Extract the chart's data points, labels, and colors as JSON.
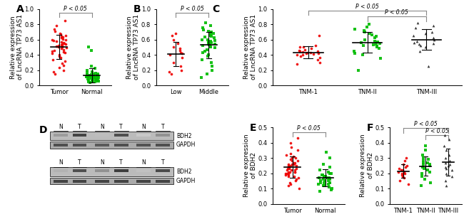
{
  "panelA": {
    "groups": [
      "Tumor",
      "Normal"
    ],
    "colors": [
      "#EE0000",
      "#00BB00"
    ],
    "markers": [
      "o",
      "s"
    ],
    "ylim": [
      0.0,
      1.0
    ],
    "yticks": [
      0.0,
      0.2,
      0.4,
      0.6,
      0.8,
      1.0
    ],
    "ylabel": "Relative expression\nof LncRNA TP73 AS1",
    "ptext": "P < 0.05",
    "data_tumor": [
      0.85,
      0.78,
      0.74,
      0.71,
      0.68,
      0.67,
      0.65,
      0.64,
      0.63,
      0.62,
      0.61,
      0.6,
      0.6,
      0.59,
      0.58,
      0.57,
      0.56,
      0.55,
      0.54,
      0.54,
      0.53,
      0.52,
      0.52,
      0.51,
      0.5,
      0.5,
      0.49,
      0.48,
      0.47,
      0.46,
      0.45,
      0.44,
      0.43,
      0.42,
      0.4,
      0.38,
      0.36,
      0.34,
      0.32,
      0.29,
      0.26,
      0.23,
      0.2,
      0.18,
      0.15
    ],
    "data_normal": [
      0.5,
      0.46,
      0.25,
      0.22,
      0.2,
      0.18,
      0.17,
      0.16,
      0.15,
      0.15,
      0.14,
      0.14,
      0.13,
      0.13,
      0.13,
      0.12,
      0.12,
      0.12,
      0.11,
      0.11,
      0.11,
      0.1,
      0.1,
      0.1,
      0.1,
      0.09,
      0.09,
      0.09,
      0.08,
      0.08,
      0.08,
      0.07,
      0.07,
      0.07,
      0.06,
      0.06,
      0.05,
      0.05,
      0.05,
      0.04
    ]
  },
  "panelB": {
    "groups": [
      "Low",
      "Middle"
    ],
    "colors": [
      "#EE0000",
      "#00BB00"
    ],
    "markers": [
      "o",
      "s"
    ],
    "ylim": [
      0.0,
      1.0
    ],
    "yticks": [
      0.0,
      0.2,
      0.4,
      0.6,
      0.8,
      1.0
    ],
    "ylabel": "Relative expression\nof LncRNA TP73 AS1",
    "ptext": "P < 0.05",
    "data_low": [
      0.68,
      0.65,
      0.6,
      0.55,
      0.5,
      0.48,
      0.46,
      0.43,
      0.42,
      0.4,
      0.36,
      0.3,
      0.25,
      0.2,
      0.18,
      0.15
    ],
    "data_middle": [
      0.82,
      0.78,
      0.75,
      0.73,
      0.71,
      0.7,
      0.68,
      0.67,
      0.65,
      0.64,
      0.63,
      0.62,
      0.6,
      0.6,
      0.59,
      0.58,
      0.57,
      0.56,
      0.55,
      0.54,
      0.53,
      0.52,
      0.51,
      0.5,
      0.49,
      0.47,
      0.45,
      0.43,
      0.4,
      0.38,
      0.34,
      0.3,
      0.25,
      0.2,
      0.15,
      0.1
    ]
  },
  "panelC": {
    "groups": [
      "TNM-1",
      "TNM-II",
      "TNM-III"
    ],
    "colors": [
      "#EE0000",
      "#00BB00",
      "#222222"
    ],
    "markers": [
      "o",
      "s",
      "^"
    ],
    "ylim": [
      0.0,
      1.0
    ],
    "yticks": [
      0.0,
      0.2,
      0.4,
      0.6,
      0.8,
      1.0
    ],
    "ylabel": "Relative expression\nof LncRNA TP73 AS1",
    "ptext1": "P < 0.05",
    "ptext2": "P < 0.05",
    "data_tnm1": [
      0.65,
      0.52,
      0.5,
      0.5,
      0.48,
      0.47,
      0.46,
      0.45,
      0.45,
      0.44,
      0.43,
      0.43,
      0.42,
      0.42,
      0.41,
      0.4,
      0.4,
      0.38,
      0.36,
      0.34,
      0.3,
      0.28
    ],
    "data_tnm2": [
      0.8,
      0.76,
      0.74,
      0.72,
      0.7,
      0.68,
      0.66,
      0.64,
      0.62,
      0.6,
      0.58,
      0.57,
      0.56,
      0.55,
      0.54,
      0.53,
      0.52,
      0.51,
      0.5,
      0.48,
      0.45,
      0.42,
      0.4,
      0.35,
      0.2
    ],
    "data_tnm3": [
      0.82,
      0.78,
      0.75,
      0.7,
      0.68,
      0.65,
      0.62,
      0.6,
      0.58,
      0.56,
      0.55,
      0.54,
      0.52,
      0.5,
      0.45,
      0.25
    ]
  },
  "panelE": {
    "groups": [
      "Tumor",
      "Normal"
    ],
    "colors": [
      "#EE0000",
      "#00BB00"
    ],
    "markers": [
      "o",
      "s"
    ],
    "ylim": [
      0.0,
      0.5
    ],
    "yticks": [
      0.0,
      0.1,
      0.2,
      0.3,
      0.4,
      0.5
    ],
    "ylabel": "Relative expression\nof BDH2",
    "ptext": "P < 0.05",
    "data_tumor": [
      0.43,
      0.4,
      0.37,
      0.35,
      0.33,
      0.32,
      0.31,
      0.3,
      0.3,
      0.29,
      0.28,
      0.28,
      0.27,
      0.27,
      0.26,
      0.26,
      0.26,
      0.25,
      0.25,
      0.25,
      0.24,
      0.24,
      0.23,
      0.23,
      0.23,
      0.22,
      0.22,
      0.22,
      0.21,
      0.21,
      0.21,
      0.21,
      0.2,
      0.2,
      0.2,
      0.19,
      0.19,
      0.18,
      0.18,
      0.17,
      0.16,
      0.15,
      0.14,
      0.13,
      0.12,
      0.1
    ],
    "data_normal": [
      0.34,
      0.3,
      0.26,
      0.24,
      0.22,
      0.21,
      0.2,
      0.2,
      0.19,
      0.19,
      0.18,
      0.18,
      0.18,
      0.17,
      0.17,
      0.17,
      0.16,
      0.16,
      0.16,
      0.15,
      0.15,
      0.15,
      0.14,
      0.14,
      0.14,
      0.14,
      0.13,
      0.13,
      0.12,
      0.12,
      0.11,
      0.1,
      0.09,
      0.08
    ]
  },
  "panelF": {
    "groups": [
      "TNM-1",
      "TNM-II",
      "TNM-III"
    ],
    "colors": [
      "#EE0000",
      "#00BB00",
      "#222222"
    ],
    "markers": [
      "o",
      "s",
      "^"
    ],
    "ylim": [
      0.0,
      0.5
    ],
    "yticks": [
      0.0,
      0.1,
      0.2,
      0.3,
      0.4,
      0.5
    ],
    "ylabel": "Relative expression\nof BDH2",
    "ptext1": "P < 0.05",
    "ptext2": "P < 0.05",
    "data_tnm1": [
      0.3,
      0.28,
      0.26,
      0.25,
      0.24,
      0.23,
      0.22,
      0.22,
      0.21,
      0.21,
      0.2,
      0.2,
      0.19,
      0.18,
      0.17,
      0.15,
      0.13
    ],
    "data_tnm2": [
      0.38,
      0.35,
      0.32,
      0.3,
      0.29,
      0.28,
      0.27,
      0.27,
      0.26,
      0.26,
      0.25,
      0.25,
      0.24,
      0.23,
      0.22,
      0.21,
      0.2,
      0.18,
      0.16,
      0.14,
      0.12
    ],
    "data_tnm3": [
      0.45,
      0.42,
      0.38,
      0.35,
      0.32,
      0.3,
      0.28,
      0.27,
      0.26,
      0.25,
      0.24,
      0.23,
      0.22,
      0.2,
      0.18,
      0.15,
      0.12
    ]
  },
  "label_fontsize": 6.5,
  "tick_fontsize": 6,
  "panel_label_fontsize": 10,
  "pval_fontsize": 5.5,
  "bg_color": "#FFFFFF"
}
